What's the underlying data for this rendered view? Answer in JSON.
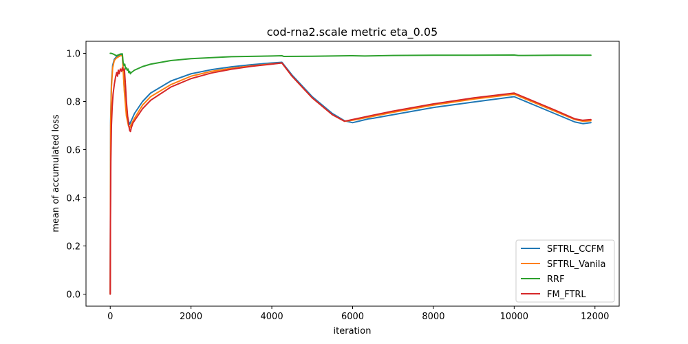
{
  "chart_data": {
    "type": "line",
    "title": "cod-rna2.scale metric eta_0.05",
    "xlabel": "iteration",
    "ylabel": "mean of accumulated loss",
    "xlim": [
      -600,
      12600
    ],
    "ylim": [
      -0.05,
      1.05
    ],
    "xticks": [
      0,
      2000,
      4000,
      6000,
      8000,
      10000,
      12000
    ],
    "xtick_labels": [
      "0",
      "2000",
      "4000",
      "6000",
      "8000",
      "10000",
      "12000"
    ],
    "yticks": [
      0.0,
      0.2,
      0.4,
      0.6,
      0.8,
      1.0
    ],
    "ytick_labels": [
      "0.0",
      "0.2",
      "0.4",
      "0.6",
      "0.8",
      "1.0"
    ],
    "grid": false,
    "legend_position": "lower-right",
    "series": [
      {
        "name": "SFTRL_CCFM",
        "color": "#1f77b4",
        "x": [
          0,
          10,
          30,
          60,
          100,
          150,
          200,
          250,
          300,
          350,
          400,
          450,
          480,
          520,
          600,
          800,
          1000,
          1500,
          2000,
          2500,
          3000,
          3500,
          4000,
          4250,
          4500,
          5000,
          5500,
          5800,
          6000,
          6200,
          6400,
          6500,
          7000,
          8000,
          9000,
          10000,
          10500,
          11000,
          11500,
          11700,
          11900
        ],
        "y": [
          0.0,
          0.72,
          0.88,
          0.95,
          0.975,
          0.985,
          0.99,
          0.993,
          0.995,
          0.85,
          0.76,
          0.72,
          0.705,
          0.72,
          0.75,
          0.8,
          0.835,
          0.885,
          0.915,
          0.932,
          0.944,
          0.953,
          0.96,
          0.963,
          0.91,
          0.82,
          0.75,
          0.72,
          0.712,
          0.72,
          0.728,
          0.73,
          0.745,
          0.775,
          0.798,
          0.82,
          0.785,
          0.75,
          0.715,
          0.708,
          0.712
        ]
      },
      {
        "name": "SFTRL_Vanila",
        "color": "#ff7f0e",
        "x": [
          0,
          10,
          30,
          60,
          100,
          150,
          200,
          250,
          300,
          350,
          400,
          450,
          480,
          520,
          600,
          800,
          1000,
          1500,
          2000,
          2500,
          3000,
          3500,
          4000,
          4250,
          4500,
          5000,
          5500,
          5800,
          6000,
          6500,
          7000,
          8000,
          9000,
          10000,
          10500,
          11000,
          11500,
          11700,
          11900
        ],
        "y": [
          0.0,
          0.7,
          0.86,
          0.94,
          0.97,
          0.98,
          0.985,
          0.99,
          0.99,
          0.84,
          0.74,
          0.7,
          0.69,
          0.705,
          0.73,
          0.785,
          0.82,
          0.87,
          0.905,
          0.925,
          0.938,
          0.948,
          0.956,
          0.96,
          0.905,
          0.815,
          0.745,
          0.718,
          0.722,
          0.738,
          0.755,
          0.785,
          0.81,
          0.83,
          0.795,
          0.76,
          0.725,
          0.718,
          0.72
        ]
      },
      {
        "name": "RRF",
        "color": "#2ca02c",
        "x": [
          0,
          20,
          60,
          100,
          150,
          200,
          250,
          300,
          320,
          340,
          360,
          380,
          400,
          420,
          440,
          460,
          480,
          500,
          520,
          560,
          600,
          800,
          1000,
          1500,
          2000,
          3000,
          4000,
          4250,
          4300,
          5000,
          6000,
          6300,
          7000,
          8000,
          9000,
          10000,
          10100,
          11000,
          11900
        ],
        "y": [
          1.0,
          1.0,
          0.998,
          0.995,
          0.99,
          0.993,
          0.997,
          0.998,
          0.96,
          0.95,
          0.955,
          0.935,
          0.94,
          0.93,
          0.935,
          0.92,
          0.925,
          0.915,
          0.92,
          0.925,
          0.93,
          0.945,
          0.955,
          0.97,
          0.978,
          0.986,
          0.989,
          0.99,
          0.987,
          0.988,
          0.99,
          0.989,
          0.991,
          0.992,
          0.992,
          0.993,
          0.991,
          0.992,
          0.992
        ]
      },
      {
        "name": "FM_FTRL",
        "color": "#d62728",
        "x": [
          0,
          5,
          15,
          30,
          50,
          70,
          100,
          130,
          160,
          180,
          200,
          220,
          250,
          280,
          300,
          320,
          350,
          380,
          400,
          430,
          460,
          480,
          500,
          520,
          560,
          600,
          800,
          1000,
          1500,
          2000,
          2500,
          3000,
          3500,
          4000,
          4250,
          4500,
          5000,
          5500,
          5800,
          6000,
          6500,
          7000,
          8000,
          9000,
          10000,
          10500,
          11000,
          11500,
          11700,
          11900
        ],
        "y": [
          0.0,
          0.3,
          0.55,
          0.7,
          0.78,
          0.83,
          0.87,
          0.9,
          0.92,
          0.905,
          0.93,
          0.915,
          0.935,
          0.925,
          0.94,
          0.93,
          0.935,
          0.86,
          0.8,
          0.74,
          0.7,
          0.68,
          0.675,
          0.69,
          0.71,
          0.72,
          0.77,
          0.805,
          0.86,
          0.895,
          0.918,
          0.934,
          0.946,
          0.955,
          0.96,
          0.905,
          0.815,
          0.745,
          0.718,
          0.725,
          0.743,
          0.76,
          0.79,
          0.815,
          0.835,
          0.8,
          0.765,
          0.728,
          0.722,
          0.725
        ]
      }
    ]
  }
}
